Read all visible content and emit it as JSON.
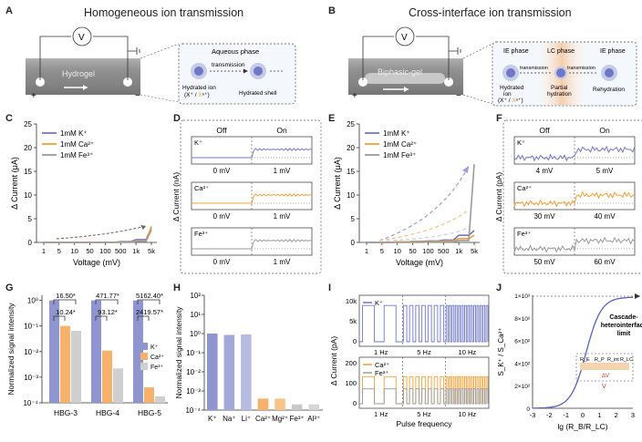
{
  "panels": {
    "A": {
      "letter": "A",
      "title": "Homogeneous ion transmission",
      "hydrogel": "Hydrogel",
      "v": "V",
      "aqueous": "Aqueous phase",
      "transmission": "transmission",
      "hydrated_ion": "Hydrated ion",
      "ion_formula_a": "(X",
      "ion_formula_b": "/ X",
      "hydrated_shell": "Hydrated shell"
    },
    "B": {
      "letter": "B",
      "title": "Cross-interface ion transmission",
      "biphasic": "Biphasic-gel",
      "v": "V",
      "ie_phase": "IE phase",
      "lc_phase": "LC phase",
      "ie_phase2": "IE phase",
      "transmission": "transmission",
      "transmission2": "transmission",
      "hydrated_ion": "Hydrated",
      "ion": "ion",
      "ion_formula": "(X⁺ / X",
      "partial": "Partial",
      "hydration": "hydration",
      "rehydration": "Rehydration"
    },
    "C": {
      "letter": "C"
    },
    "D": {
      "letter": "D",
      "off": "Off",
      "on": "On",
      "ylabel": "Δ Current (nA)",
      "rows": [
        {
          "ion": "K⁺",
          "off_v": "0 mV",
          "on_v": "1 mV"
        },
        {
          "ion": "Ca²⁺",
          "off_v": "0 mV",
          "on_v": "1 mV"
        },
        {
          "ion": "Fe³⁺",
          "off_v": "0 mV",
          "on_v": "1 mV"
        }
      ]
    },
    "E": {
      "letter": "E"
    },
    "F": {
      "letter": "F",
      "off": "Off",
      "on": "On",
      "ylabel": "Δ Current (pA)",
      "rows": [
        {
          "ion": "K⁺",
          "off_v": "4 mV",
          "on_v": "5 mV"
        },
        {
          "ion": "Ca²⁺",
          "off_v": "30 mV",
          "on_v": "40 mV"
        },
        {
          "ion": "Fe³⁺",
          "off_v": "50 mV",
          "on_v": "60 mV"
        }
      ]
    },
    "G": {
      "letter": "G"
    },
    "H": {
      "letter": "H"
    },
    "I": {
      "letter": "I",
      "ylabel": "Δ Current (pA)",
      "xlabel": "Pulse frequency",
      "freqs": [
        "1 Hz",
        "5 Hz",
        "10 Hz"
      ],
      "top_legend": "K⁺",
      "bot_legend": [
        "Ca²⁺",
        "Fe³⁺"
      ],
      "top_ticks": [
        "10k",
        "5k",
        "0"
      ],
      "bot_ticks": [
        "200",
        "100",
        "0"
      ]
    },
    "J": {
      "letter": "J",
      "ylabel": "S_K⁺ / S_Ca²⁺",
      "xlabel": "lg (R_B/R_LC)",
      "annotation": [
        "Cascade-",
        "heterointerface",
        "limit"
      ],
      "yticks": [
        "1×10³",
        "8×10²",
        "6×10²",
        "4×10²",
        "2×10²",
        "0"
      ],
      "xticks": [
        "-3",
        "-2",
        "-1",
        "0",
        "1",
        "2",
        "3"
      ],
      "inset": {
        "re": "R_E",
        "rp": "R_P",
        "rint": "R_int",
        "rlc": "R_LC",
        "dv": "ΔV",
        "v": "V"
      }
    }
  },
  "chart_data": [
    {
      "type": "line",
      "panel": "C",
      "xlabel": "Voltage (mV)",
      "ylabel": "Δ Current (μA)",
      "x": [
        "1",
        "5",
        "10",
        "50",
        "100",
        "500",
        "1k",
        "5k"
      ],
      "ylim": [
        0,
        25
      ],
      "yticks": [
        "25",
        "20",
        "15",
        "10",
        "5",
        "0"
      ],
      "series": [
        {
          "name": "1mM K⁺",
          "color": "#6f78c6",
          "y": [
            0,
            0,
            0,
            0,
            0.05,
            0.15,
            0.6,
            3.0
          ]
        },
        {
          "name": "1mM Ca²⁺",
          "color": "#f2a035",
          "y": [
            0,
            0,
            0,
            0,
            0,
            0.05,
            0.3,
            3.4
          ]
        },
        {
          "name": "1mM Fe³⁺",
          "color": "#9a9a9a",
          "y": [
            0,
            0,
            0,
            0,
            0,
            0,
            0.2,
            2.6
          ]
        }
      ],
      "legend": "top-left"
    },
    {
      "type": "line",
      "panel": "E",
      "xlabel": "Voltage (mV)",
      "ylabel": "Δ Current (μA)",
      "x": [
        "1",
        "5",
        "10",
        "50",
        "100",
        "500",
        "1k",
        "5k"
      ],
      "ylim": [
        0,
        25
      ],
      "yticks": [
        "25",
        "20",
        "15",
        "10",
        "5",
        "0"
      ],
      "series": [
        {
          "name": "1mM K⁺",
          "color": "#6f78c6",
          "y": [
            0,
            0,
            0.1,
            0.2,
            0.3,
            0.5,
            1.5,
            2.5
          ]
        },
        {
          "name": "1mM Ca²⁺",
          "color": "#f2a035",
          "y": [
            0,
            0,
            0.1,
            0.1,
            0.2,
            0.3,
            0.8,
            1.5
          ]
        },
        {
          "name": "1mM Fe³⁺",
          "color": "#9a9a9a",
          "y": [
            0,
            0,
            0,
            0,
            0.1,
            0.1,
            0.4,
            16.5
          ]
        }
      ],
      "legend": "top-left"
    },
    {
      "type": "bar",
      "panel": "G",
      "ylabel": "Normalized signal intensity",
      "categories": [
        "HBG-3",
        "HBG-4",
        "HBG-5"
      ],
      "yticks": [
        "10⁰",
        "10⁻¹",
        "10⁻²",
        "10⁻³",
        "10⁻⁴"
      ],
      "ylog": true,
      "ylim": [
        0.0001,
        1.5
      ],
      "series": [
        {
          "name": "K⁺",
          "color": "#8f95cf",
          "values": [
            1,
            1,
            1
          ]
        },
        {
          "name": "Ca²⁺",
          "color": "#f6b26b",
          "values": [
            0.1,
            0.011,
            0.0004
          ]
        },
        {
          "name": "Fe³⁺",
          "color": "#cfcfcf",
          "values": [
            0.065,
            0.0022,
            0.00018
          ]
        }
      ],
      "annotations": [
        "16.50*",
        "10.24*",
        "471.77*",
        "93.12*",
        "5162.40*",
        "2419.57*"
      ]
    },
    {
      "type": "bar",
      "panel": "H",
      "ylabel": "Normalized signal intensity",
      "categories": [
        "K⁺",
        "Na⁺",
        "Li⁺",
        "Ca²⁺",
        "Mg²⁺",
        "Fe³⁺",
        "Al³⁺"
      ],
      "yticks": [
        "10²",
        "10¹",
        "10⁰",
        "10⁻¹",
        "10⁻²",
        "10⁻³",
        "10⁻⁴"
      ],
      "ylog": true,
      "ylim": [
        0.0001,
        100
      ],
      "values": [
        1,
        0.85,
        0.9,
        0.0004,
        0.0004,
        0.0002,
        0.0002
      ],
      "colors": [
        "#8f95cf",
        "#a3a8d8",
        "#b9bce2",
        "#f6b26b",
        "#f7c48a",
        "#c9c9c9",
        "#d6d6d6"
      ]
    }
  ]
}
